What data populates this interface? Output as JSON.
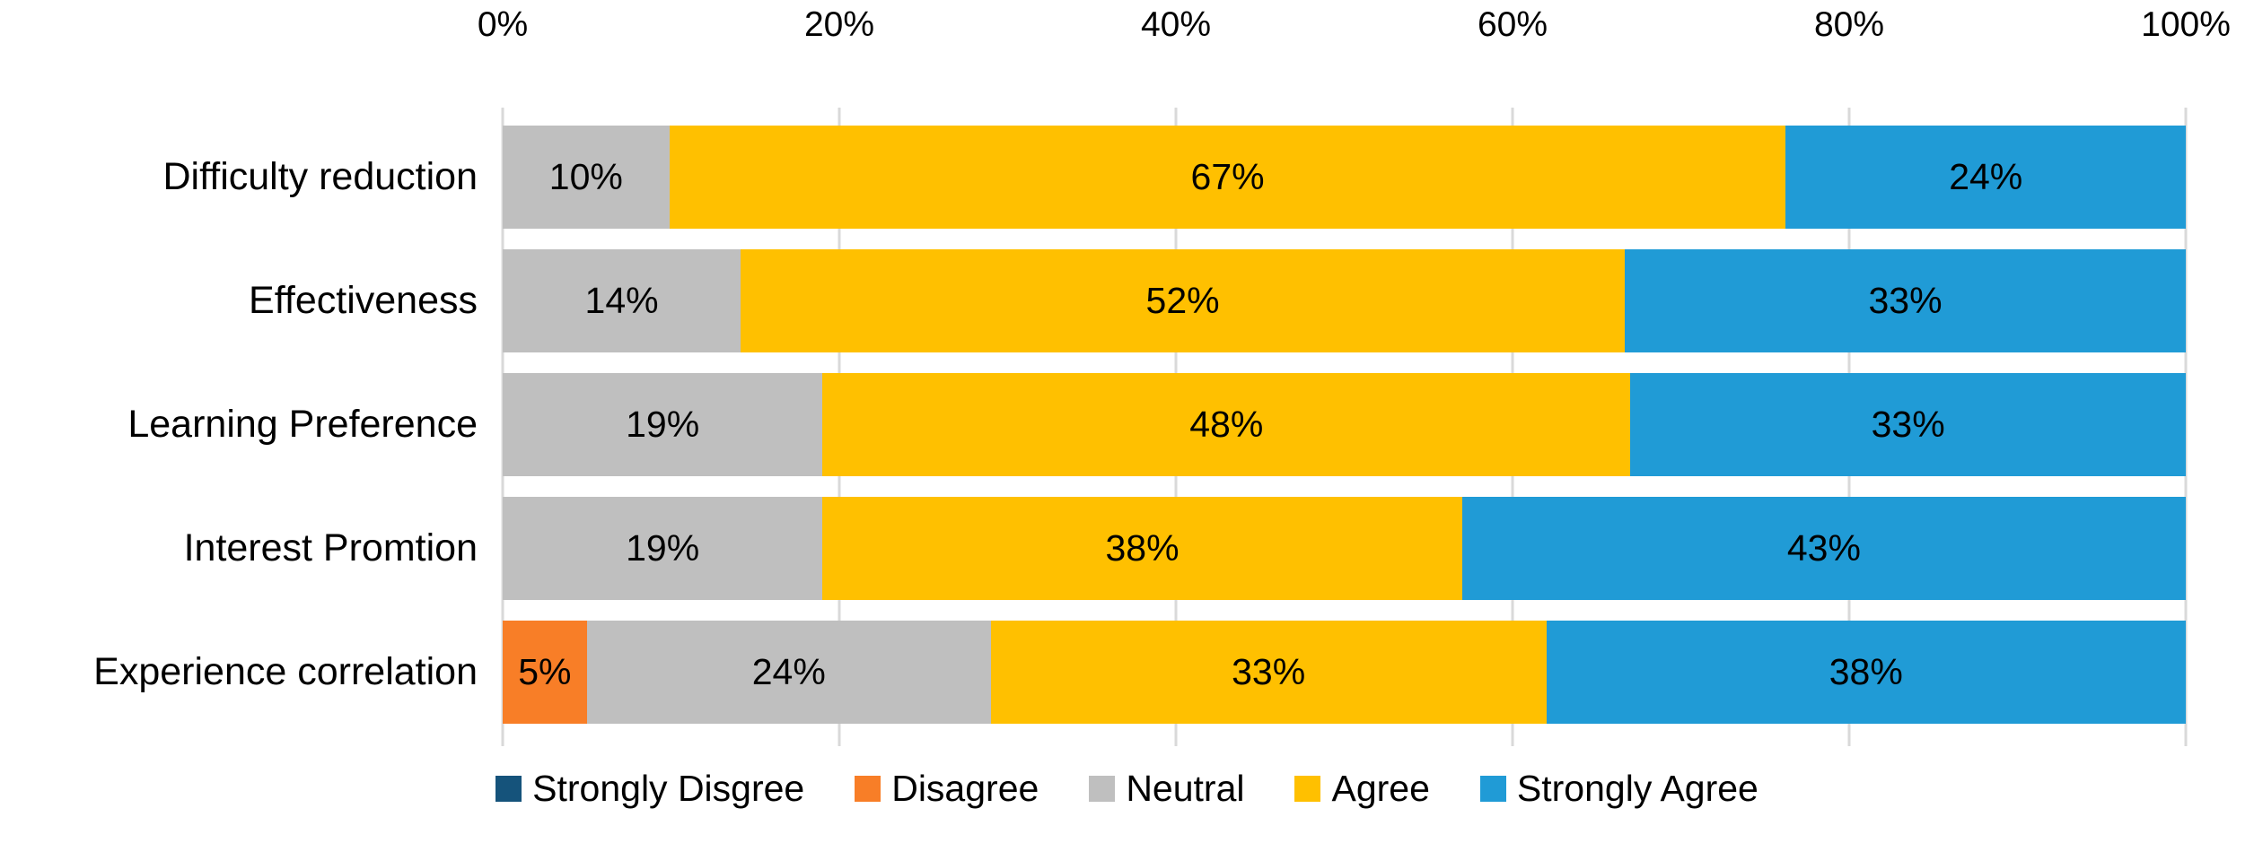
{
  "chart_data": {
    "type": "bar",
    "orientation": "horizontal",
    "stacked": true,
    "title": "",
    "xlabel": "",
    "ylabel": "",
    "x_axis": {
      "position": "top",
      "range": [
        0,
        100
      ],
      "ticks": [
        "0%",
        "20%",
        "40%",
        "60%",
        "80%",
        "100%"
      ]
    },
    "grid": true,
    "legend_position": "bottom",
    "categories": [
      "Difficulty reduction",
      "Effectiveness",
      "Learning Preference",
      "Interest Promtion",
      "Experience correlation"
    ],
    "series": [
      {
        "name": "Strongly Disgree",
        "color": "#15537B",
        "values": [
          0,
          0,
          0,
          0,
          0
        ],
        "labels": [
          "",
          "",
          "",
          "",
          ""
        ]
      },
      {
        "name": "Disagree",
        "color": "#F87E27",
        "values": [
          0,
          0,
          0,
          0,
          5
        ],
        "labels": [
          "",
          "",
          "",
          "",
          "5%"
        ]
      },
      {
        "name": "Neutral",
        "color": "#BFBFBF",
        "values": [
          10,
          14,
          19,
          19,
          24
        ],
        "labels": [
          "10%",
          "14%",
          "19%",
          "19%",
          "24%"
        ]
      },
      {
        "name": "Agree",
        "color": "#FFC000",
        "values": [
          67,
          52,
          48,
          38,
          33
        ],
        "labels": [
          "67%",
          "52%",
          "48%",
          "38%",
          "33%"
        ]
      },
      {
        "name": "Strongly Agree",
        "color": "#209BD6",
        "values": [
          24,
          33,
          33,
          43,
          38
        ],
        "labels": [
          "24%",
          "33%",
          "33%",
          "43%",
          "38%"
        ]
      }
    ]
  },
  "colors": {
    "gridline": "#D9D9D9",
    "text": "#000000",
    "background": "#FFFFFF"
  }
}
